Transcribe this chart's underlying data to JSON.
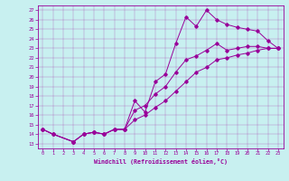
{
  "xlabel": "Windchill (Refroidissement éolien,°C)",
  "xlim": [
    -0.5,
    23.5
  ],
  "ylim": [
    12.5,
    27.5
  ],
  "xticks": [
    0,
    1,
    2,
    3,
    4,
    5,
    6,
    7,
    8,
    9,
    10,
    11,
    12,
    13,
    14,
    15,
    16,
    17,
    18,
    19,
    20,
    21,
    22,
    23
  ],
  "yticks": [
    13,
    14,
    15,
    16,
    17,
    18,
    19,
    20,
    21,
    22,
    23,
    24,
    25,
    26,
    27
  ],
  "bg_color": "#c8f0f0",
  "line_color": "#990099",
  "series1": [
    [
      0,
      14.5
    ],
    [
      1,
      14.0
    ],
    [
      3,
      13.2
    ],
    [
      4,
      14.0
    ],
    [
      5,
      14.2
    ],
    [
      6,
      14.0
    ],
    [
      7,
      14.5
    ],
    [
      8,
      14.5
    ],
    [
      9,
      17.5
    ],
    [
      10,
      16.3
    ],
    [
      11,
      19.5
    ],
    [
      12,
      20.3
    ],
    [
      13,
      23.5
    ],
    [
      14,
      26.3
    ],
    [
      15,
      25.3
    ],
    [
      16,
      27.0
    ],
    [
      17,
      26.0
    ],
    [
      18,
      25.5
    ],
    [
      19,
      25.2
    ],
    [
      20,
      25.0
    ],
    [
      21,
      24.8
    ],
    [
      22,
      23.8
    ],
    [
      23,
      23.0
    ]
  ],
  "series2": [
    [
      0,
      14.5
    ],
    [
      1,
      14.0
    ],
    [
      3,
      13.2
    ],
    [
      4,
      14.0
    ],
    [
      5,
      14.2
    ],
    [
      6,
      14.0
    ],
    [
      7,
      14.5
    ],
    [
      8,
      14.5
    ],
    [
      9,
      16.5
    ],
    [
      10,
      17.0
    ],
    [
      11,
      18.2
    ],
    [
      12,
      19.0
    ],
    [
      13,
      20.5
    ],
    [
      14,
      21.8
    ],
    [
      15,
      22.2
    ],
    [
      16,
      22.8
    ],
    [
      17,
      23.5
    ],
    [
      18,
      22.8
    ],
    [
      19,
      23.0
    ],
    [
      20,
      23.2
    ],
    [
      21,
      23.2
    ],
    [
      22,
      23.0
    ],
    [
      23,
      23.0
    ]
  ],
  "series3": [
    [
      0,
      14.5
    ],
    [
      1,
      14.0
    ],
    [
      3,
      13.2
    ],
    [
      4,
      14.0
    ],
    [
      5,
      14.2
    ],
    [
      6,
      14.0
    ],
    [
      7,
      14.5
    ],
    [
      8,
      14.5
    ],
    [
      9,
      15.5
    ],
    [
      10,
      16.0
    ],
    [
      11,
      16.8
    ],
    [
      12,
      17.5
    ],
    [
      13,
      18.5
    ],
    [
      14,
      19.5
    ],
    [
      15,
      20.5
    ],
    [
      16,
      21.0
    ],
    [
      17,
      21.8
    ],
    [
      18,
      22.0
    ],
    [
      19,
      22.3
    ],
    [
      20,
      22.5
    ],
    [
      21,
      22.8
    ],
    [
      22,
      23.0
    ],
    [
      23,
      23.0
    ]
  ]
}
